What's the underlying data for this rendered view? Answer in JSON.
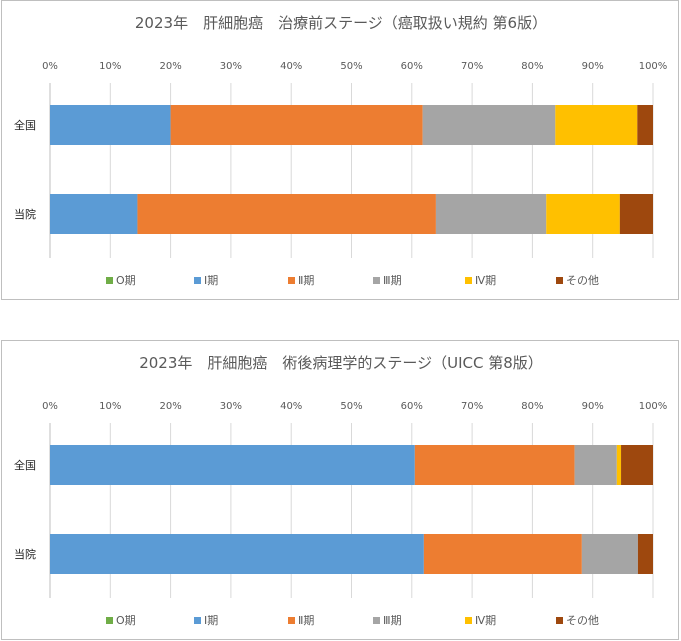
{
  "colors": {
    "O期": "#70ad47",
    "Ⅰ期": "#5b9bd5",
    "Ⅱ期": "#ed7d31",
    "Ⅲ期": "#a5a5a5",
    "Ⅳ期": "#ffc000",
    "その他": "#9e480e"
  },
  "chart_data": [
    {
      "type": "bar",
      "orientation": "horizontal-stacked-100",
      "title": "2023年　肝細胞癌　治療前ステージ（癌取扱い規約 第6版）",
      "categories": [
        "全国",
        "当院"
      ],
      "xlim": [
        0,
        100
      ],
      "ticks": [
        "0%",
        "10%",
        "20%",
        "30%",
        "40%",
        "50%",
        "60%",
        "70%",
        "80%",
        "90%",
        "100%"
      ],
      "legend_position": "bottom",
      "series": [
        {
          "name": "O期",
          "values": [
            0,
            0
          ]
        },
        {
          "name": "Ⅰ期",
          "values": [
            20,
            14.5
          ]
        },
        {
          "name": "Ⅱ期",
          "values": [
            41.8,
            49.5
          ]
        },
        {
          "name": "Ⅲ期",
          "values": [
            22,
            18.3
          ]
        },
        {
          "name": "Ⅳ期",
          "values": [
            13.6,
            12.2
          ]
        },
        {
          "name": "その他",
          "values": [
            2.6,
            5.5
          ]
        }
      ]
    },
    {
      "type": "bar",
      "orientation": "horizontal-stacked-100",
      "title": "2023年　肝細胞癌　術後病理学的ステージ（UICC 第8版）",
      "categories": [
        "全国",
        "当院"
      ],
      "xlim": [
        0,
        100
      ],
      "ticks": [
        "0%",
        "10%",
        "20%",
        "30%",
        "40%",
        "50%",
        "60%",
        "70%",
        "80%",
        "90%",
        "100%"
      ],
      "legend_position": "bottom",
      "series": [
        {
          "name": "O期",
          "values": [
            0,
            0
          ]
        },
        {
          "name": "Ⅰ期",
          "values": [
            60.5,
            62
          ]
        },
        {
          "name": "Ⅱ期",
          "values": [
            26.5,
            26.2
          ]
        },
        {
          "name": "Ⅲ期",
          "values": [
            7,
            9.3
          ]
        },
        {
          "name": "Ⅳ期",
          "values": [
            0.7,
            0
          ]
        },
        {
          "name": "その他",
          "values": [
            5.3,
            2.5
          ]
        }
      ]
    }
  ]
}
